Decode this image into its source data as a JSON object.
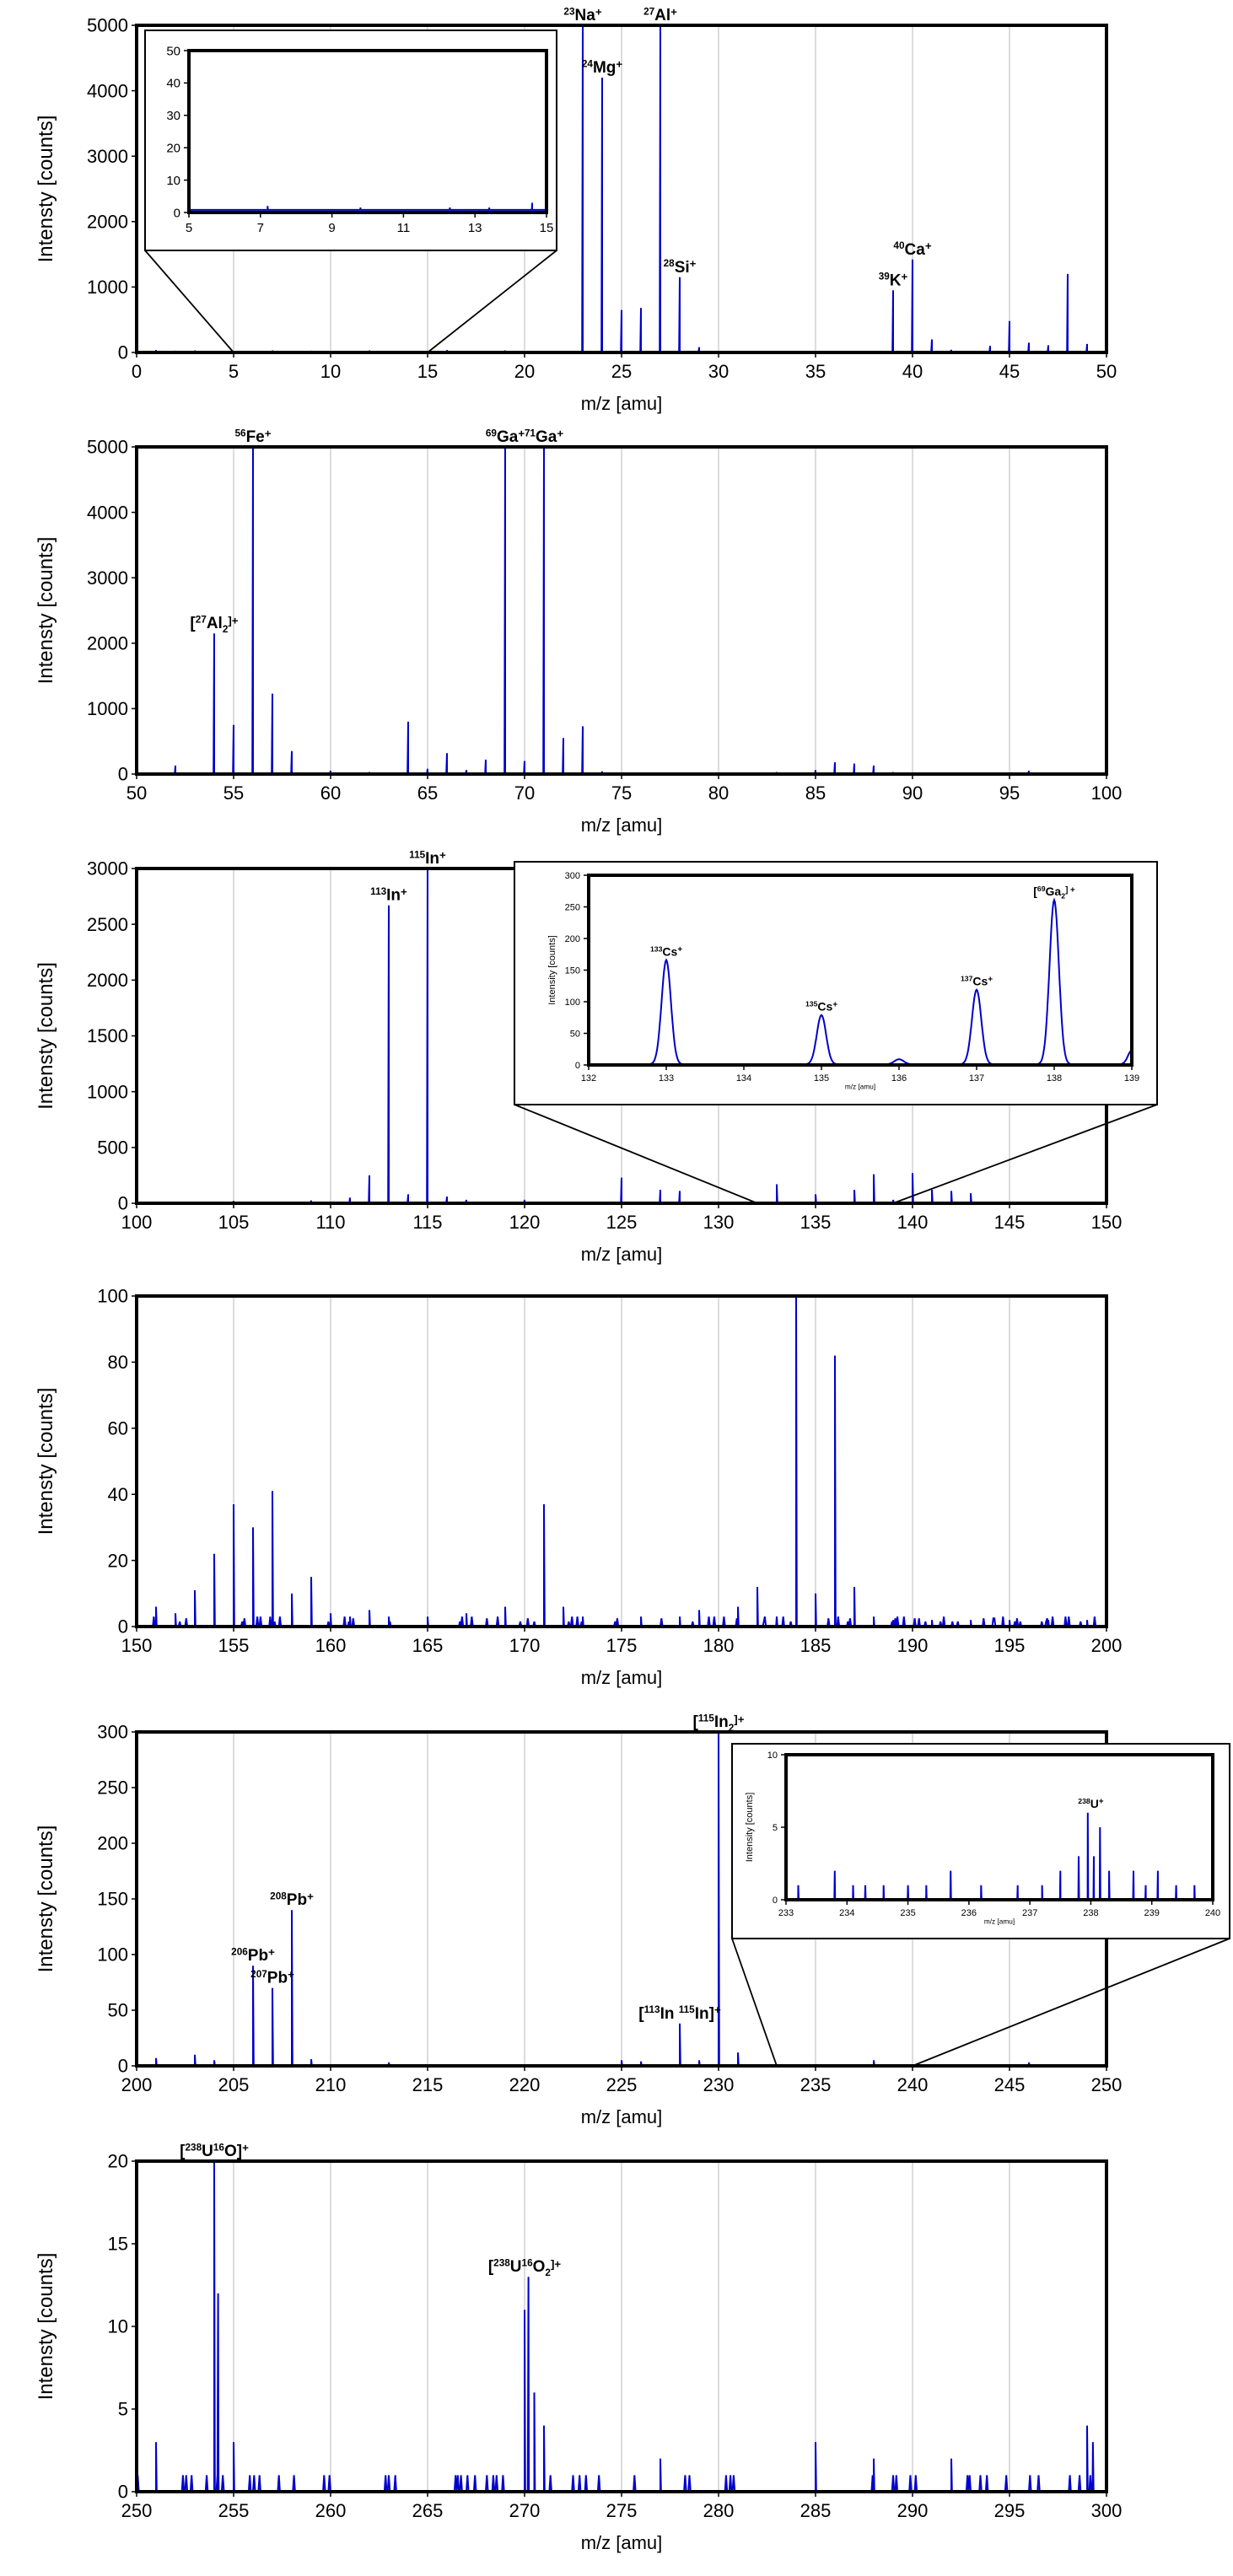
{
  "chart_data": [
    {
      "type": "line",
      "xlabel": "m/z [amu]",
      "ylabel": "Intensty [counts]",
      "xlim": [
        0,
        50
      ],
      "xticks": [
        0,
        5,
        10,
        15,
        20,
        25,
        30,
        35,
        40,
        45,
        50
      ],
      "ylim": [
        0,
        5000
      ],
      "yticks": [
        0,
        1000,
        2000,
        3000,
        4000,
        5000
      ],
      "grid": "vertical",
      "series_color": "#0000cc",
      "peaks": [
        [
          1,
          35
        ],
        [
          2,
          25
        ],
        [
          3,
          30
        ],
        [
          7,
          30
        ],
        [
          9,
          25
        ],
        [
          12,
          30
        ],
        [
          16,
          35
        ],
        [
          19,
          30
        ],
        [
          23,
          5000
        ],
        [
          24,
          4200
        ],
        [
          25,
          650
        ],
        [
          26,
          680
        ],
        [
          27,
          5000
        ],
        [
          28,
          1150
        ],
        [
          29,
          80
        ],
        [
          39,
          950
        ],
        [
          40,
          1420
        ],
        [
          41,
          200
        ],
        [
          42,
          40
        ],
        [
          44,
          100
        ],
        [
          45,
          480
        ],
        [
          46,
          150
        ],
        [
          47,
          110
        ],
        [
          48,
          1200
        ],
        [
          49,
          130
        ]
      ],
      "annotations": [
        {
          "x": 23,
          "y": 5000,
          "sup": "23",
          "main": "Na",
          "post": "+"
        },
        {
          "x": 24,
          "y": 4200,
          "sup": "24",
          "main": "Mg",
          "post": "+"
        },
        {
          "x": 27,
          "y": 5000,
          "sup": "27",
          "main": "Al",
          "post": "+"
        },
        {
          "x": 28,
          "y": 1150,
          "sup": "28",
          "main": "Si",
          "post": "+"
        },
        {
          "x": 39,
          "y": 950,
          "sup": "39",
          "main": "K",
          "post": "+"
        },
        {
          "x": 40,
          "y": 1420,
          "sup": "40",
          "main": "Ca",
          "post": "+"
        }
      ],
      "inset": {
        "type": "line",
        "xlim": [
          5,
          15
        ],
        "xticks": [
          5,
          7,
          9,
          11,
          13,
          15
        ],
        "ylim": [
          0,
          50
        ],
        "yticks": [
          0,
          10,
          20,
          30,
          40,
          50
        ],
        "xlabel": "",
        "ylabel": "",
        "peaks": [
          [
            7.2,
            2
          ],
          [
            9.8,
            1.5
          ],
          [
            12.3,
            1.5
          ],
          [
            13.4,
            1.5
          ],
          [
            14.6,
            3
          ]
        ],
        "baseline": 0.8,
        "zoom_range": [
          5,
          15
        ]
      }
    },
    {
      "type": "line",
      "xlabel": "m/z [amu]",
      "ylabel": "Intensty [counts]",
      "xlim": [
        50,
        100
      ],
      "xticks": [
        50,
        55,
        60,
        65,
        70,
        75,
        80,
        85,
        90,
        95,
        100
      ],
      "ylim": [
        0,
        5000
      ],
      "yticks": [
        0,
        1000,
        2000,
        3000,
        4000,
        5000
      ],
      "grid": "vertical",
      "series_color": "#0000cc",
      "peaks": [
        [
          52,
          130
        ],
        [
          54,
          2150
        ],
        [
          55,
          750
        ],
        [
          56,
          5000
        ],
        [
          57,
          1230
        ],
        [
          58,
          350
        ],
        [
          60,
          50
        ],
        [
          62,
          30
        ],
        [
          64,
          800
        ],
        [
          65,
          80
        ],
        [
          66,
          320
        ],
        [
          67,
          60
        ],
        [
          68,
          220
        ],
        [
          69,
          5000
        ],
        [
          70,
          200
        ],
        [
          71,
          5000
        ],
        [
          72,
          550
        ],
        [
          73,
          730
        ],
        [
          74,
          40
        ],
        [
          83,
          30
        ],
        [
          85,
          60
        ],
        [
          86,
          180
        ],
        [
          87,
          160
        ],
        [
          88,
          130
        ],
        [
          89,
          30
        ],
        [
          96,
          50
        ]
      ],
      "annotations": [
        {
          "x": 56,
          "y": 5000,
          "sup": "56",
          "main": "Fe",
          "post": "+"
        },
        {
          "x": 69,
          "y": 5000,
          "sup": "69",
          "main": "Ga",
          "post": "+"
        },
        {
          "x": 71,
          "y": 5000,
          "sup": "71",
          "main": "Ga",
          "post": "+"
        },
        {
          "x": 54,
          "y": 2150,
          "pre": "[",
          "sup": "27",
          "main": "Al",
          "sub": "2",
          "post": "]+"
        }
      ]
    },
    {
      "type": "line",
      "xlabel": "m/z [amu]",
      "ylabel": "Intensty [counts]",
      "xlim": [
        100,
        150
      ],
      "xticks": [
        100,
        105,
        110,
        115,
        120,
        125,
        130,
        135,
        140,
        145,
        150
      ],
      "ylim": [
        0,
        3000
      ],
      "yticks": [
        0,
        500,
        1000,
        1500,
        2000,
        2500,
        3000
      ],
      "grid": "vertical",
      "series_color": "#0000cc",
      "peaks": [
        [
          105,
          20
        ],
        [
          109,
          25
        ],
        [
          111,
          50
        ],
        [
          112,
          250
        ],
        [
          113,
          2670
        ],
        [
          114,
          80
        ],
        [
          115,
          3000
        ],
        [
          116,
          60
        ],
        [
          117,
          30
        ],
        [
          120,
          30
        ],
        [
          125,
          230
        ],
        [
          127,
          120
        ],
        [
          128,
          110
        ],
        [
          133,
          170
        ],
        [
          135,
          80
        ],
        [
          137,
          120
        ],
        [
          138,
          260
        ],
        [
          139,
          30
        ],
        [
          140,
          270
        ],
        [
          141,
          120
        ],
        [
          142,
          110
        ],
        [
          143,
          90
        ]
      ],
      "annotations": [
        {
          "x": 113,
          "y": 2670,
          "sup": "113",
          "main": "In",
          "post": "+"
        },
        {
          "x": 115,
          "y": 3000,
          "sup": "115",
          "main": "In",
          "post": "+"
        }
      ],
      "inset": {
        "type": "line",
        "xlim": [
          132,
          139
        ],
        "xticks": [
          132,
          133,
          134,
          135,
          136,
          137,
          138,
          139
        ],
        "ylim": [
          0,
          300
        ],
        "yticks": [
          0,
          50,
          100,
          150,
          200,
          250,
          300
        ],
        "xlabel": "m/z [amu]",
        "ylabel": "Intensity [counts]",
        "gaussians": [
          [
            133,
            165,
            0.06
          ],
          [
            135,
            78,
            0.06
          ],
          [
            136,
            8,
            0.06
          ],
          [
            137,
            118,
            0.06
          ],
          [
            138,
            260,
            0.06
          ],
          [
            139,
            22,
            0.05
          ]
        ],
        "annotations": [
          {
            "x": 133,
            "y": 165,
            "sup": "133",
            "main": "Cs",
            "post": "+"
          },
          {
            "x": 135,
            "y": 78,
            "sup": "135",
            "main": "Cs",
            "post": "+"
          },
          {
            "x": 137,
            "y": 118,
            "sup": "137",
            "main": "Cs",
            "post": "+"
          },
          {
            "x": 138,
            "y": 260,
            "pre": "[",
            "sup": "69",
            "main": "Ga",
            "sub": "2",
            "post": "] +"
          }
        ],
        "zoom_range": [
          132,
          139
        ]
      }
    },
    {
      "type": "line",
      "xlabel": "m/z [amu]",
      "ylabel": "Intensty [counts]",
      "xlim": [
        150,
        200
      ],
      "xticks": [
        150,
        155,
        160,
        165,
        170,
        175,
        180,
        185,
        190,
        195,
        200
      ],
      "ylim": [
        0,
        100
      ],
      "yticks": [
        0,
        20,
        40,
        60,
        80,
        100
      ],
      "grid": "vertical",
      "series_color": "#0000cc",
      "peaks": [
        [
          151,
          6
        ],
        [
          152,
          4
        ],
        [
          153,
          11
        ],
        [
          154,
          22
        ],
        [
          155,
          37
        ],
        [
          156,
          30
        ],
        [
          157,
          41
        ],
        [
          158,
          10
        ],
        [
          159,
          15
        ],
        [
          160,
          4
        ],
        [
          161,
          3
        ],
        [
          162,
          5
        ],
        [
          163,
          3
        ],
        [
          165,
          3
        ],
        [
          167,
          4
        ],
        [
          169,
          6
        ],
        [
          171,
          37
        ],
        [
          172,
          6
        ],
        [
          173,
          3
        ],
        [
          176,
          3
        ],
        [
          178,
          3
        ],
        [
          179,
          5
        ],
        [
          181,
          6
        ],
        [
          182,
          12
        ],
        [
          183,
          3
        ],
        [
          184,
          100
        ],
        [
          185,
          10
        ],
        [
          186,
          82
        ],
        [
          187,
          12
        ],
        [
          188,
          3
        ],
        [
          189,
          2
        ],
        [
          191,
          2
        ],
        [
          193,
          2
        ],
        [
          195,
          2
        ],
        [
          197,
          2
        ],
        [
          199,
          2
        ],
        [
          200,
          4
        ]
      ],
      "noise_peaks": [
        1.5,
        2.5,
        3
      ],
      "annotations": []
    },
    {
      "type": "line",
      "xlabel": "m/z [amu]",
      "ylabel": "Intensty [counts]",
      "xlim": [
        200,
        250
      ],
      "xticks": [
        200,
        205,
        210,
        215,
        220,
        225,
        230,
        235,
        240,
        245,
        250
      ],
      "ylim": [
        0,
        300
      ],
      "yticks": [
        0,
        50,
        100,
        150,
        200,
        250,
        300
      ],
      "grid": "vertical",
      "series_color": "#0000cc",
      "peaks": [
        [
          201,
          7
        ],
        [
          203,
          10
        ],
        [
          204,
          5
        ],
        [
          206,
          90
        ],
        [
          207,
          70
        ],
        [
          208,
          140
        ],
        [
          209,
          6
        ],
        [
          213,
          3
        ],
        [
          225,
          5
        ],
        [
          226,
          4
        ],
        [
          228,
          38
        ],
        [
          229,
          5
        ],
        [
          230,
          300
        ],
        [
          231,
          12
        ],
        [
          238,
          5
        ],
        [
          246,
          3
        ]
      ],
      "annotations": [
        {
          "x": 206,
          "y": 90,
          "sup": "206",
          "main": "Pb",
          "post": "+"
        },
        {
          "x": 207,
          "y": 70,
          "sup": "207",
          "main": "Pb",
          "post": "+"
        },
        {
          "x": 208,
          "y": 140,
          "sup": "208",
          "main": "Pb",
          "post": "+"
        },
        {
          "x": 230,
          "y": 300,
          "pre": "[",
          "sup": "115",
          "main": "In",
          "sub": "2",
          "post": "]+"
        },
        {
          "x": 228,
          "y": 38,
          "pre": "[",
          "sup": "113",
          "main": "In ",
          "sup2": "115",
          "main2": "In]",
          "post": "+"
        }
      ],
      "inset": {
        "type": "line",
        "xlim": [
          233,
          240
        ],
        "xticks": [
          233,
          234,
          235,
          236,
          237,
          238,
          239,
          240
        ],
        "ylim": [
          0,
          10
        ],
        "yticks": [
          0,
          5,
          10
        ],
        "xlabel": "m/z [amu]",
        "ylabel": "Intensity [counts]",
        "peaks": [
          [
            233.2,
            1
          ],
          [
            233.8,
            2
          ],
          [
            234.1,
            1
          ],
          [
            234.3,
            1
          ],
          [
            234.6,
            1
          ],
          [
            235.0,
            1
          ],
          [
            235.3,
            1
          ],
          [
            235.7,
            2
          ],
          [
            236.2,
            1
          ],
          [
            236.8,
            1
          ],
          [
            237.2,
            1
          ],
          [
            237.5,
            2
          ],
          [
            237.8,
            3
          ],
          [
            237.95,
            6
          ],
          [
            238.05,
            3
          ],
          [
            238.15,
            5
          ],
          [
            238.3,
            2
          ],
          [
            238.7,
            2
          ],
          [
            238.9,
            1
          ],
          [
            239.1,
            2
          ],
          [
            239.4,
            1
          ],
          [
            239.7,
            1
          ]
        ],
        "annotations": [
          {
            "x": 238,
            "y": 6,
            "sup": "238",
            "main": "U",
            "post": "+"
          }
        ],
        "zoom_range": [
          233,
          240
        ]
      }
    },
    {
      "type": "line",
      "xlabel": "m/z [amu]",
      "ylabel": "Intensty [counts]",
      "xlim": [
        250,
        300
      ],
      "xticks": [
        250,
        255,
        260,
        265,
        270,
        275,
        280,
        285,
        290,
        295,
        300
      ],
      "ylim": [
        0,
        20
      ],
      "yticks": [
        0,
        5,
        10,
        15,
        20
      ],
      "grid": "vertical",
      "series_color": "#0000cc",
      "peaks": [
        [
          251,
          3
        ],
        [
          254,
          20
        ],
        [
          254.2,
          12
        ],
        [
          255,
          3
        ],
        [
          270,
          11
        ],
        [
          270.2,
          13
        ],
        [
          270.5,
          6
        ],
        [
          271,
          4
        ],
        [
          277,
          2
        ],
        [
          285,
          3
        ],
        [
          288,
          2
        ],
        [
          292,
          2
        ],
        [
          299,
          4
        ],
        [
          299.3,
          3
        ]
      ],
      "noise_peaks": [
        1
      ],
      "annotations": [
        {
          "x": 254,
          "y": 20,
          "pre": "[",
          "sup": "238",
          "main": "U",
          "sup2": "16",
          "main2": "O]",
          "post": "+"
        },
        {
          "x": 270,
          "y": 13,
          "pre": "[",
          "sup": "238",
          "main": "U",
          "sup2": "16",
          "main2": "O",
          "sub": "2",
          "post": "]+"
        }
      ]
    }
  ]
}
